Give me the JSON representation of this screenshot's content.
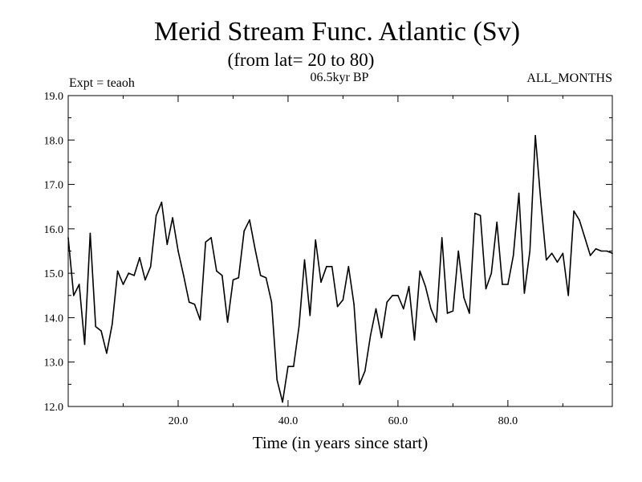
{
  "chart_data": {
    "type": "line",
    "title": "Merid Stream Func. Atlantic (Sv)",
    "subtitle": "(from lat= 20 to 80)",
    "annotation_left": "Expt = teaoh",
    "annotation_center": "06.5kyr BP",
    "annotation_right": "ALL_MONTHS",
    "xlabel": "Time (in years since start)",
    "ylabel": "",
    "xlim": [
      0,
      99
    ],
    "ylim": [
      12.0,
      19.0
    ],
    "xticks": [
      20,
      40,
      60,
      80
    ],
    "xtick_labels": [
      "20.0",
      "40.0",
      "60.0",
      "80.0"
    ],
    "yticks": [
      12,
      13,
      14,
      15,
      16,
      17,
      18,
      19
    ],
    "ytick_labels": [
      "12.0",
      "13.0",
      "14.0",
      "15.0",
      "16.0",
      "17.0",
      "18.0",
      "19.0"
    ],
    "series": [
      {
        "name": "Merid Stream Func. Atlantic",
        "x": [
          0,
          1,
          2,
          3,
          4,
          5,
          6,
          7,
          8,
          9,
          10,
          11,
          12,
          13,
          14,
          15,
          16,
          17,
          18,
          19,
          20,
          21,
          22,
          23,
          24,
          25,
          26,
          27,
          28,
          29,
          30,
          31,
          32,
          33,
          34,
          35,
          36,
          37,
          38,
          39,
          40,
          41,
          42,
          43,
          44,
          45,
          46,
          47,
          48,
          49,
          50,
          51,
          52,
          53,
          54,
          55,
          56,
          57,
          58,
          59,
          60,
          61,
          62,
          63,
          64,
          65,
          66,
          67,
          68,
          69,
          70,
          71,
          72,
          73,
          74,
          75,
          76,
          77,
          78,
          79,
          80,
          81,
          82,
          83,
          84,
          85,
          86,
          87,
          88,
          89,
          90,
          91,
          92,
          93,
          94,
          95,
          96,
          97,
          98,
          99
        ],
        "values": [
          15.8,
          14.5,
          14.75,
          13.4,
          15.9,
          13.8,
          13.7,
          13.2,
          13.85,
          15.05,
          14.75,
          15.0,
          14.95,
          15.35,
          14.85,
          15.15,
          16.3,
          16.6,
          15.65,
          16.25,
          15.5,
          14.95,
          14.35,
          14.3,
          13.95,
          15.7,
          15.8,
          15.05,
          14.95,
          13.9,
          14.85,
          14.9,
          15.95,
          16.2,
          15.55,
          14.95,
          14.9,
          14.35,
          12.6,
          12.1,
          12.9,
          12.9,
          13.8,
          15.3,
          14.05,
          15.75,
          14.8,
          15.15,
          15.15,
          14.25,
          14.4,
          15.15,
          14.3,
          12.5,
          12.8,
          13.6,
          14.2,
          13.55,
          14.35,
          14.5,
          14.5,
          14.2,
          14.7,
          13.5,
          15.05,
          14.7,
          14.2,
          13.9,
          15.8,
          14.1,
          14.15,
          15.5,
          14.45,
          14.1,
          16.35,
          16.3,
          14.65,
          15.0,
          16.15,
          14.75,
          14.75,
          15.4,
          16.8,
          14.55,
          15.5,
          18.1,
          16.6,
          15.3,
          15.45,
          15.25,
          15.45,
          14.5,
          16.4,
          16.2,
          15.8,
          15.4,
          15.55,
          15.5,
          15.5,
          15.45
        ]
      }
    ]
  }
}
